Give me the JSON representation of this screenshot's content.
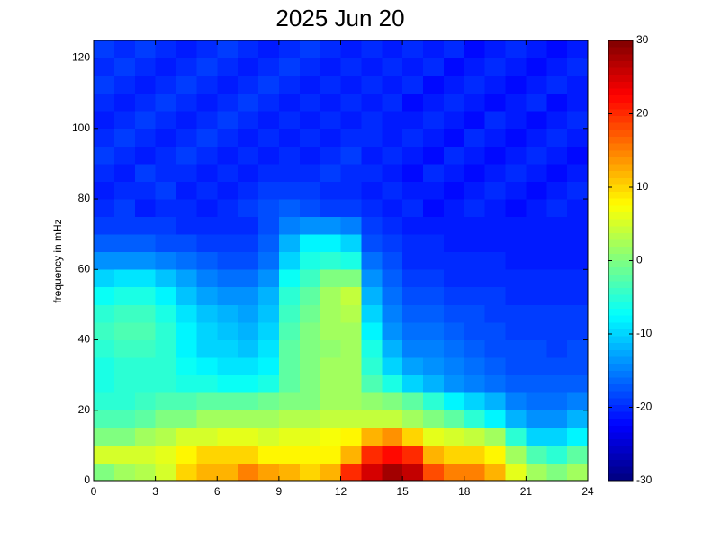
{
  "chart_data": {
    "type": "heatmap",
    "title": "2025 Jun 20",
    "y_label": "frequency in mHz",
    "colormap": "jet",
    "x": [
      0,
      1,
      2,
      3,
      4,
      5,
      6,
      7,
      8,
      9,
      10,
      11,
      12,
      13,
      14,
      15,
      16,
      17,
      18,
      19,
      20,
      21,
      22,
      23,
      24
    ],
    "y": [
      0,
      5,
      10,
      15,
      20,
      25,
      30,
      35,
      40,
      45,
      50,
      55,
      60,
      65,
      70,
      75,
      80,
      85,
      90,
      95,
      100,
      105,
      110,
      115,
      120,
      125
    ],
    "z": [
      [
        0,
        2,
        3,
        5,
        10,
        12,
        12,
        15,
        13,
        12,
        10,
        12,
        20,
        25,
        28,
        26,
        18,
        15,
        15,
        12,
        6,
        2,
        0,
        2
      ],
      [
        5,
        5,
        5,
        6,
        8,
        10,
        10,
        10,
        8,
        8,
        8,
        8,
        12,
        20,
        22,
        20,
        12,
        10,
        10,
        8,
        2,
        -3,
        -5,
        -2
      ],
      [
        0,
        0,
        2,
        3,
        5,
        5,
        6,
        6,
        5,
        6,
        6,
        7,
        8,
        12,
        14,
        10,
        6,
        5,
        4,
        2,
        -5,
        -10,
        -10,
        -8
      ],
      [
        -3,
        -3,
        -2,
        0,
        0,
        2,
        2,
        2,
        2,
        3,
        3,
        4,
        4,
        4,
        4,
        2,
        0,
        -2,
        -5,
        -8,
        -12,
        -14,
        -14,
        -12
      ],
      [
        -5,
        -5,
        -4,
        -3,
        -3,
        -2,
        -2,
        -2,
        -1,
        0,
        0,
        2,
        2,
        1,
        0,
        -2,
        -5,
        -8,
        -10,
        -12,
        -15,
        -16,
        -16,
        -15
      ],
      [
        -6,
        -5,
        -5,
        -5,
        -6,
        -6,
        -7,
        -7,
        -6,
        -2,
        0,
        2,
        2,
        -3,
        -6,
        -10,
        -12,
        -14,
        -15,
        -16,
        -17,
        -17,
        -17,
        -17
      ],
      [
        -6,
        -5,
        -5,
        -5,
        -7,
        -8,
        -9,
        -9,
        -8,
        -2,
        0,
        2,
        2,
        -5,
        -10,
        -13,
        -14,
        -15,
        -16,
        -17,
        -18,
        -18,
        -18,
        -18
      ],
      [
        -5,
        -4,
        -4,
        -5,
        -8,
        -10,
        -10,
        -11,
        -9,
        -2,
        0,
        1,
        2,
        -6,
        -12,
        -15,
        -15,
        -16,
        -17,
        -18,
        -18,
        -18,
        -19,
        -18
      ],
      [
        -4,
        -3,
        -3,
        -5,
        -8,
        -10,
        -11,
        -12,
        -10,
        -3,
        0,
        2,
        2,
        -8,
        -14,
        -16,
        -16,
        -17,
        -18,
        -18,
        -19,
        -19,
        -19,
        -19
      ],
      [
        -5,
        -4,
        -4,
        -6,
        -9,
        -11,
        -12,
        -13,
        -11,
        -4,
        -1,
        2,
        3,
        -10,
        -15,
        -17,
        -17,
        -18,
        -18,
        -19,
        -19,
        -19,
        -19,
        -19
      ],
      [
        -7,
        -6,
        -6,
        -8,
        -11,
        -13,
        -14,
        -14,
        -12,
        -5,
        -2,
        2,
        4,
        -12,
        -16,
        -18,
        -18,
        -19,
        -19,
        -19,
        -20,
        -20,
        -20,
        -20
      ],
      [
        -10,
        -9,
        -9,
        -11,
        -13,
        -15,
        -16,
        -16,
        -14,
        -7,
        -4,
        0,
        0,
        -14,
        -17,
        -19,
        -19,
        -20,
        -20,
        -20,
        -20,
        -20,
        -20,
        -20
      ],
      [
        -14,
        -14,
        -14,
        -15,
        -16,
        -17,
        -18,
        -18,
        -16,
        -10,
        -6,
        -5,
        -6,
        -16,
        -18,
        -20,
        -20,
        -20,
        -20,
        -20,
        -21,
        -21,
        -21,
        -21
      ],
      [
        -17,
        -17,
        -17,
        -18,
        -18,
        -19,
        -19,
        -19,
        -17,
        -12,
        -8,
        -8,
        -10,
        -18,
        -19,
        -20,
        -20,
        -21,
        -21,
        -21,
        -21,
        -21,
        -21,
        -21
      ],
      [
        -19,
        -19,
        -19,
        -19,
        -20,
        -20,
        -20,
        -20,
        -18,
        -15,
        -14,
        -14,
        -15,
        -19,
        -20,
        -21,
        -21,
        -21,
        -21,
        -21,
        -21,
        -21,
        -21,
        -21
      ],
      [
        -20,
        -19,
        -21,
        -20,
        -20,
        -21,
        -20,
        -19,
        -18,
        -17,
        -18,
        -19,
        -19,
        -20,
        -21,
        -20,
        -22,
        -21,
        -20,
        -21,
        -22,
        -21,
        -20,
        -21
      ],
      [
        -21,
        -20,
        -20,
        -19,
        -21,
        -20,
        -21,
        -20,
        -19,
        -19,
        -19,
        -20,
        -20,
        -21,
        -20,
        -21,
        -21,
        -22,
        -21,
        -20,
        -21,
        -22,
        -21,
        -20
      ],
      [
        -20,
        -21,
        -19,
        -20,
        -20,
        -21,
        -20,
        -21,
        -20,
        -20,
        -20,
        -19,
        -20,
        -20,
        -21,
        -22,
        -20,
        -21,
        -22,
        -21,
        -20,
        -21,
        -22,
        -21
      ],
      [
        -19,
        -20,
        -21,
        -20,
        -19,
        -20,
        -21,
        -20,
        -21,
        -20,
        -21,
        -20,
        -19,
        -21,
        -20,
        -21,
        -22,
        -20,
        -21,
        -22,
        -21,
        -20,
        -21,
        -22
      ],
      [
        -20,
        -19,
        -20,
        -21,
        -20,
        -19,
        -20,
        -21,
        -20,
        -21,
        -20,
        -21,
        -20,
        -20,
        -21,
        -20,
        -21,
        -22,
        -20,
        -21,
        -22,
        -21,
        -20,
        -21
      ],
      [
        -21,
        -20,
        -19,
        -20,
        -21,
        -20,
        -19,
        -20,
        -21,
        -20,
        -21,
        -20,
        -21,
        -20,
        -21,
        -21,
        -20,
        -21,
        -22,
        -20,
        -21,
        -22,
        -21,
        -20
      ],
      [
        -20,
        -21,
        -20,
        -19,
        -20,
        -21,
        -20,
        -19,
        -20,
        -21,
        -20,
        -21,
        -20,
        -21,
        -20,
        -22,
        -21,
        -20,
        -21,
        -22,
        -21,
        -20,
        -22,
        -21
      ],
      [
        -19,
        -20,
        -21,
        -20,
        -19,
        -20,
        -21,
        -20,
        -19,
        -20,
        -21,
        -20,
        -21,
        -20,
        -21,
        -20,
        -22,
        -21,
        -20,
        -21,
        -22,
        -21,
        -20,
        -21
      ],
      [
        -20,
        -19,
        -20,
        -21,
        -20,
        -19,
        -20,
        -21,
        -20,
        -19,
        -20,
        -21,
        -20,
        -21,
        -20,
        -21,
        -20,
        -22,
        -21,
        -20,
        -21,
        -22,
        -21,
        -20
      ],
      [
        -19,
        -20,
        -19,
        -20,
        -21,
        -20,
        -19,
        -20,
        -21,
        -20,
        -19,
        -20,
        -21,
        -20,
        -21,
        -20,
        -21,
        -20,
        -22,
        -21,
        -20,
        -21,
        -22,
        -21
      ]
    ],
    "xlim": [
      0,
      24
    ],
    "xticks": [
      0,
      3,
      6,
      9,
      12,
      15,
      18,
      21,
      24
    ],
    "ylim": [
      0,
      125
    ],
    "yticks": [
      0,
      20,
      40,
      60,
      80,
      100,
      120
    ],
    "clim": [
      -30,
      30
    ],
    "cticks": [
      -30,
      -20,
      -10,
      0,
      10,
      20,
      30
    ]
  }
}
